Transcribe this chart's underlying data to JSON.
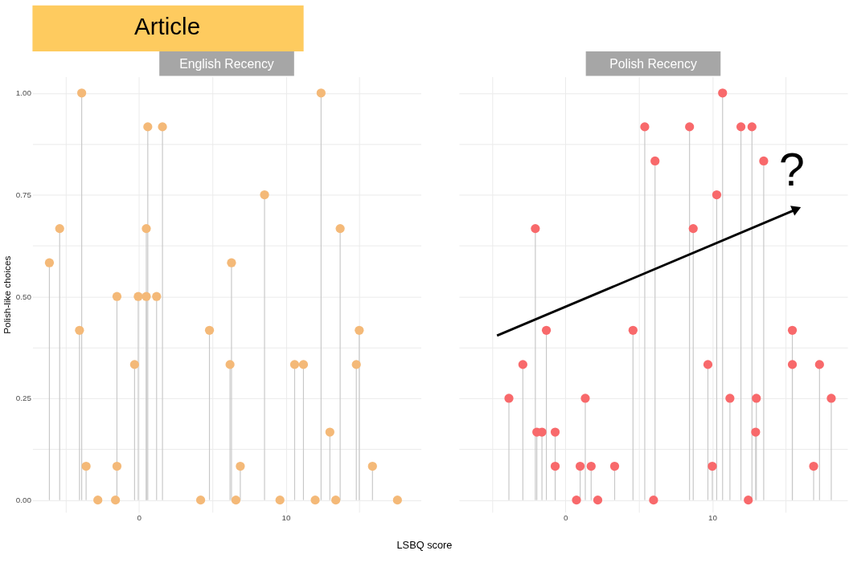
{
  "chart_data": [
    {
      "type": "lollipop",
      "title": "English Recency",
      "annotations": [
        "Article"
      ],
      "xlabel": "LSBQ score",
      "ylabel": "Polish-like choices",
      "marker": "circle",
      "grid": true,
      "xlim": [
        -7.25,
        19.2
      ],
      "ylim": [
        -0.03,
        1.04
      ],
      "xticks": [
        {
          "value": -5,
          "label": null
        },
        0,
        {
          "value": 5,
          "label": null
        },
        10,
        {
          "value": 15,
          "label": null
        }
      ],
      "yticks": [
        {
          "value": 0,
          "label": "0.00"
        },
        {
          "value": 0.125,
          "label": null
        },
        {
          "value": 0.25,
          "label": "0.25"
        },
        {
          "value": 0.375,
          "label": null
        },
        {
          "value": 0.5,
          "label": "0.50"
        },
        {
          "value": 0.625,
          "label": null
        },
        {
          "value": 0.75,
          "label": "0.75"
        },
        {
          "value": 0.875,
          "label": null
        },
        {
          "value": 1,
          "label": "1.00"
        }
      ],
      "series": [
        {
          "color": "#f4b978",
          "x": [
            -6.1,
            -5.4,
            -3.9,
            -4.05,
            -3.6,
            -2.8,
            -1.5,
            -1.5,
            -1.6,
            -0.3,
            -0.05,
            0.5,
            0.5,
            0.6,
            1.2,
            1.6,
            4.2,
            4.8,
            6.3,
            6.2,
            6.6,
            6.9,
            8.55,
            9.6,
            10.6,
            11.2,
            12.4,
            12.0,
            13.0,
            13.4,
            13.7,
            15.0,
            14.8,
            15.9,
            17.6
          ],
          "values": [
            0.583,
            0.667,
            1.0,
            0.417,
            0.083,
            0,
            0.5,
            0.083,
            0,
            0.333,
            0.5,
            0.5,
            0.667,
            0.917,
            0.5,
            0.917,
            0,
            0.417,
            0.583,
            0.333,
            0,
            0.083,
            0.75,
            0,
            0.333,
            0.333,
            1.0,
            0,
            0.167,
            0,
            0.667,
            0.417,
            0.333,
            0.083,
            0
          ]
        }
      ]
    },
    {
      "type": "lollipop",
      "title": "Polish Recency",
      "annotations": [
        "?"
      ],
      "marker": "circle",
      "grid": true,
      "tick_labels": "x",
      "xlim": [
        -7.25,
        19.2
      ],
      "ylim": [
        -0.03,
        1.04
      ],
      "xticks": [
        {
          "value": -5,
          "label": null
        },
        0,
        {
          "value": 5,
          "label": null
        },
        10,
        {
          "value": 15,
          "label": null
        }
      ],
      "yticks": [
        {
          "value": 0,
          "label": null
        },
        {
          "value": 0.125,
          "label": null
        },
        {
          "value": 0.25,
          "label": null
        },
        {
          "value": 0.375,
          "label": null
        },
        {
          "value": 0.5,
          "label": null
        },
        {
          "value": 0.625,
          "label": null
        },
        {
          "value": 0.75,
          "label": null
        },
        {
          "value": 0.875,
          "label": null
        },
        {
          "value": 1,
          "label": null
        }
      ],
      "series": [
        {
          "color": "#f8696b",
          "x": [
            -3.85,
            -2.9,
            -2.05,
            -1.95,
            -1.6,
            -1.3,
            -0.7,
            -0.7,
            0.75,
            1.0,
            1.35,
            1.75,
            2.2,
            3.35,
            4.6,
            5.4,
            6.1,
            6.0,
            8.45,
            8.7,
            9.7,
            10.0,
            10.3,
            10.7,
            11.2,
            11.95,
            12.7,
            12.45,
            13.0,
            12.95,
            13.5,
            15.45,
            15.45,
            16.9,
            17.3,
            18.1
          ],
          "values": [
            0.25,
            0.333,
            0.667,
            0.167,
            0.167,
            0.417,
            0.167,
            0.083,
            0,
            0.083,
            0.25,
            0.083,
            0,
            0.083,
            0.417,
            0.917,
            0.833,
            0,
            0.917,
            0.667,
            0.333,
            0.083,
            0.75,
            1.0,
            0.25,
            0.917,
            0.917,
            0,
            0.25,
            0.167,
            0.833,
            0.417,
            0.333,
            0.083,
            0.333,
            0.25
          ]
        }
      ]
    }
  ]
}
